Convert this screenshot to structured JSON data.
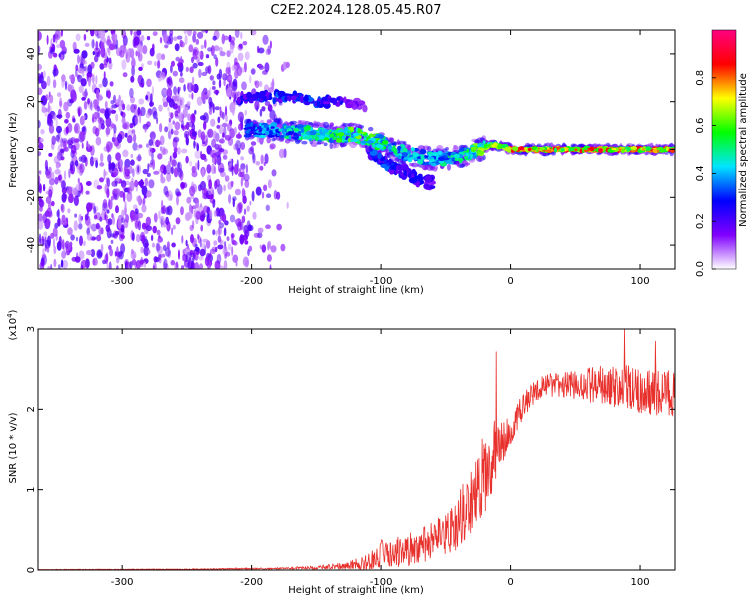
{
  "title": "C2E2.2024.128.05.45.R07",
  "chart_data": [
    {
      "type": "heatmap",
      "xlabel": "Height of straight line (km)",
      "ylabel": "Frequency (Hz)",
      "xlim": [
        -365,
        127
      ],
      "ylim": [
        -50,
        50
      ],
      "x_ticks": [
        -300,
        -200,
        -100,
        0,
        100
      ],
      "x_tick_labels": [
        "-300",
        "-200",
        "-100",
        "0",
        "100"
      ],
      "y_ticks": [
        -40,
        -20,
        0,
        20,
        40
      ],
      "y_tick_labels": [
        "-40",
        "-20",
        "0",
        "20",
        "40"
      ],
      "colorbar": {
        "label": "Normalized spectral amplitude",
        "range": [
          0,
          1
        ],
        "ticks": [
          0,
          0.2,
          0.4,
          0.6,
          0.8
        ],
        "tick_labels": [
          "0.0",
          "0.2",
          "0.4",
          "0.6",
          "0.8"
        ],
        "colors": [
          "#ffffff",
          "#8000ff",
          "#0000ff",
          "#00e5ff",
          "#00ff00",
          "#ffff00",
          "#ff0000",
          "#ff0080"
        ]
      },
      "features": {
        "noise_region_x": [
          -365,
          -215
        ],
        "main_trace": {
          "x": [
            -205,
            -180,
            -160,
            -140,
            -120,
            -100,
            -80,
            -60,
            -40,
            -25,
            -15,
            -5,
            0,
            50,
            100,
            127
          ],
          "y": [
            8,
            8,
            7,
            6,
            6,
            3,
            -2,
            -4,
            -3,
            0,
            2,
            1,
            0,
            0,
            0,
            0
          ],
          "amplitude": [
            0.35,
            0.45,
            0.5,
            0.55,
            0.6,
            0.55,
            0.45,
            0.45,
            0.5,
            0.6,
            0.7,
            0.8,
            0.85,
            0.85,
            0.85,
            0.8
          ]
        },
        "upper_branch": {
          "x": [
            -210,
            -190,
            -170,
            -150,
            -130,
            -110
          ],
          "y": [
            21,
            22,
            22,
            20,
            20,
            18
          ],
          "amplitude": [
            0.25,
            0.3,
            0.3,
            0.3,
            0.25,
            0.15
          ]
        },
        "lower_branch": {
          "x": [
            -110,
            -95,
            -80,
            -70,
            -60
          ],
          "y": [
            0,
            -6,
            -10,
            -13,
            -14
          ],
          "amplitude": [
            0.3,
            0.3,
            0.25,
            0.25,
            0.2
          ]
        }
      }
    },
    {
      "type": "line",
      "xlabel": "Height of straight line (km)",
      "ylabel": "SNR (10 * v/v)",
      "y_scale_label": "(x10",
      "y_scale_exponent": "4",
      "xlim": [
        -365,
        127
      ],
      "ylim": [
        0,
        3
      ],
      "x_ticks": [
        -300,
        -200,
        -100,
        0,
        100
      ],
      "x_tick_labels": [
        "-300",
        "-200",
        "-100",
        "0",
        "100"
      ],
      "y_ticks": [
        0,
        1,
        2,
        3
      ],
      "y_tick_labels": [
        "0",
        "1",
        "2",
        "3"
      ],
      "series": [
        {
          "color": "#e8302c",
          "envelope": {
            "x": [
              -365,
              -250,
              -180,
              -150,
              -125,
              -110,
              -100,
              -80,
              -60,
              -45,
              -35,
              -25,
              -20,
              -15,
              -10,
              -5,
              0,
              10,
              20,
              30,
              50,
              70,
              90,
              110,
              127
            ],
            "mean": [
              0.005,
              0.01,
              0.02,
              0.03,
              0.06,
              0.1,
              0.2,
              0.25,
              0.35,
              0.5,
              0.75,
              1.0,
              1.2,
              1.4,
              1.5,
              1.6,
              1.75,
              2.05,
              2.25,
              2.3,
              2.3,
              2.3,
              2.25,
              2.2,
              2.2
            ],
            "noise": [
              0.004,
              0.005,
              0.01,
              0.02,
              0.05,
              0.1,
              0.18,
              0.2,
              0.25,
              0.3,
              0.4,
              0.5,
              0.55,
              0.5,
              0.35,
              0.25,
              0.2,
              0.15,
              0.15,
              0.15,
              0.18,
              0.25,
              0.3,
              0.3,
              0.35
            ],
            "peaks": [
              {
                "x": -11,
                "y": 2.72
              },
              {
                "x": 88,
                "y": 3.0
              },
              {
                "x": 112,
                "y": 2.85
              }
            ]
          }
        }
      ]
    }
  ]
}
